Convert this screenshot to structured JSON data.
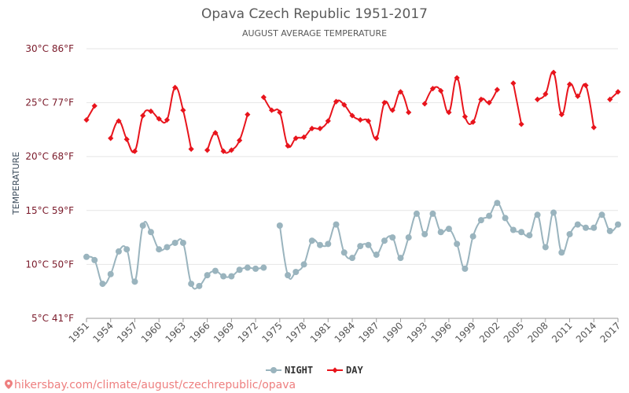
{
  "chart_data": {
    "type": "line",
    "title": "Opava Czech Republic 1951-2017",
    "subtitle": "AUGUST AVERAGE TEMPERATURE",
    "ylabel": "TEMPERATURE",
    "ylim": [
      5,
      30
    ],
    "yticks": [
      {
        "value": 5,
        "label": "5°C 41°F"
      },
      {
        "value": 10,
        "label": "10°C 50°F"
      },
      {
        "value": 15,
        "label": "15°C 59°F"
      },
      {
        "value": 20,
        "label": "20°C 68°F"
      },
      {
        "value": 25,
        "label": "25°C 77°F"
      },
      {
        "value": 30,
        "label": "30°C 86°F"
      }
    ],
    "xlim": [
      1951,
      2017
    ],
    "xticks": [
      "1951",
      "1954",
      "1957",
      "1960",
      "1963",
      "1966",
      "1969",
      "1972",
      "1975",
      "1978",
      "1981",
      "1984",
      "1987",
      "1990",
      "1993",
      "1996",
      "1999",
      "2002",
      "2005",
      "2008",
      "2011",
      "2014",
      "2017"
    ],
    "grid": "horizontal",
    "legend_position": "bottom-center",
    "series": [
      {
        "name": "NIGHT",
        "color": "#9ab4be",
        "marker": "circle",
        "points": [
          [
            1951,
            10.7
          ],
          [
            1952,
            10.4
          ],
          [
            1953,
            8.2
          ],
          [
            1954,
            9.1
          ],
          [
            1955,
            11.2
          ],
          [
            1956,
            11.4
          ],
          [
            1957,
            8.4
          ],
          [
            1958,
            13.6
          ],
          [
            1959,
            13.0
          ],
          [
            1960,
            11.4
          ],
          [
            1961,
            11.6
          ],
          [
            1962,
            12.0
          ],
          [
            1963,
            12.0
          ],
          [
            1964,
            8.2
          ],
          [
            1965,
            8.0
          ],
          [
            1966,
            9.0
          ],
          [
            1967,
            9.4
          ],
          [
            1968,
            8.9
          ],
          [
            1969,
            8.9
          ],
          [
            1970,
            9.5
          ],
          [
            1971,
            9.7
          ],
          [
            1972,
            9.6
          ],
          [
            1973,
            9.7
          ],
          null,
          [
            1975,
            13.6
          ],
          [
            1976,
            9.0
          ],
          [
            1977,
            9.3
          ],
          [
            1978,
            10.0
          ],
          [
            1979,
            12.2
          ],
          [
            1980,
            11.8
          ],
          [
            1981,
            11.9
          ],
          [
            1982,
            13.7
          ],
          [
            1983,
            11.1
          ],
          [
            1984,
            10.6
          ],
          [
            1985,
            11.7
          ],
          [
            1986,
            11.8
          ],
          [
            1987,
            10.9
          ],
          [
            1988,
            12.2
          ],
          [
            1989,
            12.5
          ],
          [
            1990,
            10.6
          ],
          [
            1991,
            12.5
          ],
          [
            1992,
            14.7
          ],
          [
            1993,
            12.8
          ],
          [
            1994,
            14.7
          ],
          [
            1995,
            13.0
          ],
          [
            1996,
            13.3
          ],
          [
            1997,
            11.9
          ],
          [
            1998,
            9.6
          ],
          [
            1999,
            12.6
          ],
          [
            2000,
            14.1
          ],
          [
            2001,
            14.5
          ],
          [
            2002,
            15.7
          ],
          [
            2003,
            14.3
          ],
          [
            2004,
            13.2
          ],
          [
            2005,
            13.0
          ],
          [
            2006,
            12.7
          ],
          [
            2007,
            14.6
          ],
          [
            2008,
            11.6
          ],
          [
            2009,
            14.8
          ],
          [
            2010,
            11.1
          ],
          [
            2011,
            12.8
          ],
          [
            2012,
            13.7
          ],
          [
            2013,
            13.4
          ],
          [
            2014,
            13.4
          ],
          [
            2015,
            14.6
          ],
          [
            2016,
            13.1
          ],
          [
            2017,
            13.7
          ]
        ]
      },
      {
        "name": "DAY",
        "color": "#e8141c",
        "marker": "diamond",
        "points": [
          [
            1951,
            23.4
          ],
          [
            1952,
            24.7
          ],
          null,
          [
            1954,
            21.7
          ],
          [
            1955,
            23.3
          ],
          [
            1956,
            21.6
          ],
          [
            1957,
            20.5
          ],
          [
            1958,
            23.8
          ],
          [
            1959,
            24.2
          ],
          [
            1960,
            23.5
          ],
          [
            1961,
            23.4
          ],
          [
            1962,
            26.4
          ],
          [
            1963,
            24.3
          ],
          [
            1964,
            20.7
          ],
          null,
          [
            1966,
            20.6
          ],
          [
            1967,
            22.2
          ],
          [
            1968,
            20.5
          ],
          [
            1969,
            20.6
          ],
          [
            1970,
            21.5
          ],
          [
            1971,
            23.9
          ],
          null,
          [
            1973,
            25.5
          ],
          [
            1974,
            24.3
          ],
          [
            1975,
            24.1
          ],
          [
            1976,
            21.0
          ],
          [
            1977,
            21.7
          ],
          [
            1978,
            21.8
          ],
          [
            1979,
            22.6
          ],
          [
            1980,
            22.6
          ],
          [
            1981,
            23.3
          ],
          [
            1982,
            25.1
          ],
          [
            1983,
            24.8
          ],
          [
            1984,
            23.8
          ],
          [
            1985,
            23.4
          ],
          [
            1986,
            23.3
          ],
          [
            1987,
            21.7
          ],
          [
            1988,
            25.0
          ],
          [
            1989,
            24.3
          ],
          [
            1990,
            26.0
          ],
          [
            1991,
            24.1
          ],
          null,
          [
            1993,
            24.9
          ],
          [
            1994,
            26.3
          ],
          [
            1995,
            26.1
          ],
          [
            1996,
            24.1
          ],
          [
            1997,
            27.3
          ],
          [
            1998,
            23.7
          ],
          [
            1999,
            23.2
          ],
          [
            2000,
            25.3
          ],
          [
            2001,
            25.0
          ],
          [
            2002,
            26.2
          ],
          null,
          [
            2004,
            26.8
          ],
          [
            2005,
            23.0
          ],
          null,
          [
            2007,
            25.3
          ],
          [
            2008,
            25.8
          ],
          [
            2009,
            27.8
          ],
          [
            2010,
            23.9
          ],
          [
            2011,
            26.7
          ],
          [
            2012,
            25.6
          ],
          [
            2013,
            26.6
          ],
          [
            2014,
            22.7
          ],
          null,
          [
            2016,
            25.3
          ],
          [
            2017,
            26.0
          ]
        ]
      }
    ]
  },
  "watermark": "hikersbay.com/climate/august/czechrepublic/opava"
}
